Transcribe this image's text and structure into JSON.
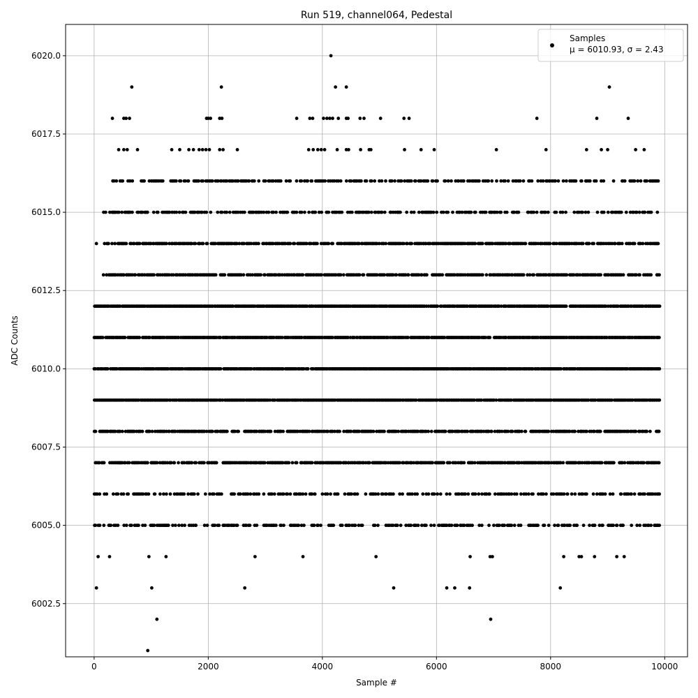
{
  "chart_data": {
    "type": "scatter",
    "title": "Run 519, channel064, Pedestal",
    "xlabel": "Sample #",
    "ylabel": "ADC Counts",
    "xlim": [
      -500,
      10400
    ],
    "ylim": [
      6000.8,
      6021.0
    ],
    "x_ticks": [
      0,
      2000,
      4000,
      6000,
      8000,
      10000
    ],
    "x_tick_labels": [
      "0",
      "2000",
      "4000",
      "6000",
      "8000",
      "10000"
    ],
    "y_ticks": [
      6002.5,
      6005.0,
      6007.5,
      6010.0,
      6012.5,
      6015.0,
      6017.5,
      6020.0
    ],
    "y_tick_labels": [
      "6002.5",
      "6005.0",
      "6007.5",
      "6010.0",
      "6012.5",
      "6015.0",
      "6017.5",
      "6020.0"
    ],
    "grid": true,
    "legend": {
      "placement": "top-right",
      "entries": [
        {
          "label": "Samples",
          "sublabel": "μ = 6010.93, σ = 2.43"
        }
      ]
    },
    "marker_color": "#000000",
    "series": [
      {
        "name": "Samples",
        "dense_levels": [
          {
            "y": 6012,
            "x_range": [
              0,
              9900
            ]
          },
          {
            "y": 6011,
            "x_range": [
              0,
              9900
            ]
          },
          {
            "y": 6010,
            "x_range": [
              0,
              9900
            ]
          },
          {
            "y": 6009,
            "x_range": [
              0,
              9900
            ]
          },
          {
            "y": 6013,
            "x_range": [
              160,
              9900
            ]
          },
          {
            "y": 6008,
            "x_range": [
              0,
              9900
            ]
          },
          {
            "y": 6014,
            "x_range": [
              160,
              9900
            ]
          },
          {
            "y": 6007,
            "x_range": [
              0,
              9900
            ]
          },
          {
            "y": 6015,
            "x_range": [
              160,
              9900
            ]
          },
          {
            "y": 6006,
            "x_range": [
              0,
              9900
            ]
          },
          {
            "y": 6016,
            "x_range": [
              300,
              9900
            ]
          },
          {
            "y": 6005,
            "x_range": [
              0,
              9900
            ]
          }
        ],
        "points": [
          [
            4150,
            6020
          ],
          [
            660,
            6019
          ],
          [
            2230,
            6019
          ],
          [
            4230,
            6019
          ],
          [
            4420,
            6019
          ],
          [
            9030,
            6019
          ],
          [
            320,
            6018
          ],
          [
            520,
            6018
          ],
          [
            560,
            6018
          ],
          [
            620,
            6018
          ],
          [
            1970,
            6018
          ],
          [
            2000,
            6018
          ],
          [
            2040,
            6018
          ],
          [
            2200,
            6018
          ],
          [
            2240,
            6018
          ],
          [
            3550,
            6018
          ],
          [
            3780,
            6018
          ],
          [
            3830,
            6018
          ],
          [
            4020,
            6018
          ],
          [
            4080,
            6018
          ],
          [
            4130,
            6018
          ],
          [
            4180,
            6018
          ],
          [
            4280,
            6018
          ],
          [
            4420,
            6018
          ],
          [
            4450,
            6018
          ],
          [
            4660,
            6018
          ],
          [
            4730,
            6018
          ],
          [
            5020,
            6018
          ],
          [
            5430,
            6018
          ],
          [
            5520,
            6018
          ],
          [
            7760,
            6018
          ],
          [
            8810,
            6018
          ],
          [
            9360,
            6018
          ],
          [
            430,
            6017
          ],
          [
            520,
            6017
          ],
          [
            580,
            6017
          ],
          [
            760,
            6017
          ],
          [
            1360,
            6017
          ],
          [
            1500,
            6017
          ],
          [
            1660,
            6017
          ],
          [
            1740,
            6017
          ],
          [
            1840,
            6017
          ],
          [
            1900,
            6017
          ],
          [
            1960,
            6017
          ],
          [
            2020,
            6017
          ],
          [
            2200,
            6017
          ],
          [
            2260,
            6017
          ],
          [
            2510,
            6017
          ],
          [
            3760,
            6017
          ],
          [
            3840,
            6017
          ],
          [
            3920,
            6017
          ],
          [
            3980,
            6017
          ],
          [
            4040,
            6017
          ],
          [
            4260,
            6017
          ],
          [
            4420,
            6017
          ],
          [
            4460,
            6017
          ],
          [
            4670,
            6017
          ],
          [
            4820,
            6017
          ],
          [
            4850,
            6017
          ],
          [
            5440,
            6017
          ],
          [
            5730,
            6017
          ],
          [
            5960,
            6017
          ],
          [
            7050,
            6017
          ],
          [
            7920,
            6017
          ],
          [
            8630,
            6017
          ],
          [
            8890,
            6017
          ],
          [
            9000,
            6017
          ],
          [
            9490,
            6017
          ],
          [
            9640,
            6017
          ],
          [
            40,
            6014
          ],
          [
            40,
            6003
          ],
          [
            70,
            6004
          ],
          [
            270,
            6004
          ],
          [
            960,
            6004
          ],
          [
            1260,
            6004
          ],
          [
            2820,
            6004
          ],
          [
            3660,
            6004
          ],
          [
            4940,
            6004
          ],
          [
            6590,
            6004
          ],
          [
            6940,
            6004
          ],
          [
            6980,
            6004
          ],
          [
            8230,
            6004
          ],
          [
            8500,
            6004
          ],
          [
            8540,
            6004
          ],
          [
            8770,
            6004
          ],
          [
            9160,
            6004
          ],
          [
            9290,
            6004
          ],
          [
            1010,
            6003
          ],
          [
            2640,
            6003
          ],
          [
            5250,
            6003
          ],
          [
            6180,
            6003
          ],
          [
            6320,
            6003
          ],
          [
            6580,
            6003
          ],
          [
            8170,
            6003
          ],
          [
            1100,
            6002
          ],
          [
            6950,
            6002
          ],
          [
            940,
            6001
          ]
        ]
      }
    ]
  }
}
